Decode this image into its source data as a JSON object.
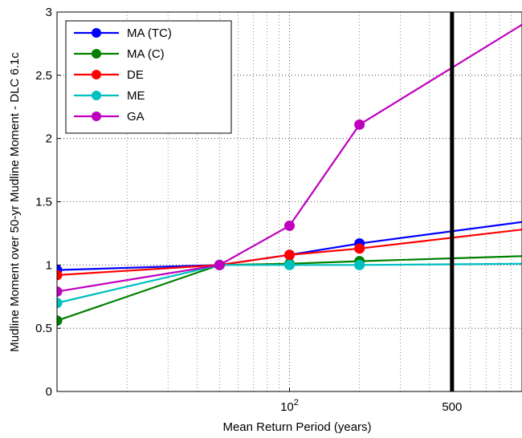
{
  "chart_data": {
    "type": "line",
    "xlabel": "Mean Return Period (years)",
    "ylabel": "Mudline Moment over 50-yr Mudline Moment - DLC 6.1c",
    "x_scale": "log",
    "xlim": [
      10,
      1000
    ],
    "ylim": [
      0,
      3
    ],
    "x_ticks": [
      {
        "value": 100,
        "label": "10",
        "exp": "2"
      },
      {
        "value": 500,
        "label": "500",
        "exp": ""
      }
    ],
    "y_ticks": [
      {
        "value": 0,
        "label": "0"
      },
      {
        "value": 0.5,
        "label": "0.5"
      },
      {
        "value": 1,
        "label": "1"
      },
      {
        "value": 1.5,
        "label": "1.5"
      },
      {
        "value": 2,
        "label": "2"
      },
      {
        "value": 2.5,
        "label": "2.5"
      },
      {
        "value": 3,
        "label": "3"
      }
    ],
    "grid": true,
    "legend_position": "top-left",
    "x": [
      10,
      50,
      100,
      200,
      1000
    ],
    "series": [
      {
        "name": "MA (TC)",
        "color": "#0000ff",
        "values": [
          0.96,
          1.0,
          1.08,
          1.17,
          1.34
        ]
      },
      {
        "name": "MA (C)",
        "color": "#008000",
        "values": [
          0.56,
          1.0,
          1.01,
          1.03,
          1.07
        ]
      },
      {
        "name": "DE",
        "color": "#ff0000",
        "values": [
          0.92,
          1.0,
          1.08,
          1.13,
          1.28
        ]
      },
      {
        "name": "ME",
        "color": "#00bfbf",
        "values": [
          0.7,
          1.0,
          1.0,
          1.0,
          1.01
        ]
      },
      {
        "name": "GA",
        "color": "#bf00bf",
        "values": [
          0.79,
          1.0,
          1.31,
          2.11,
          2.9
        ]
      }
    ],
    "vertical_line": {
      "x": 500,
      "color": "#000000"
    }
  }
}
